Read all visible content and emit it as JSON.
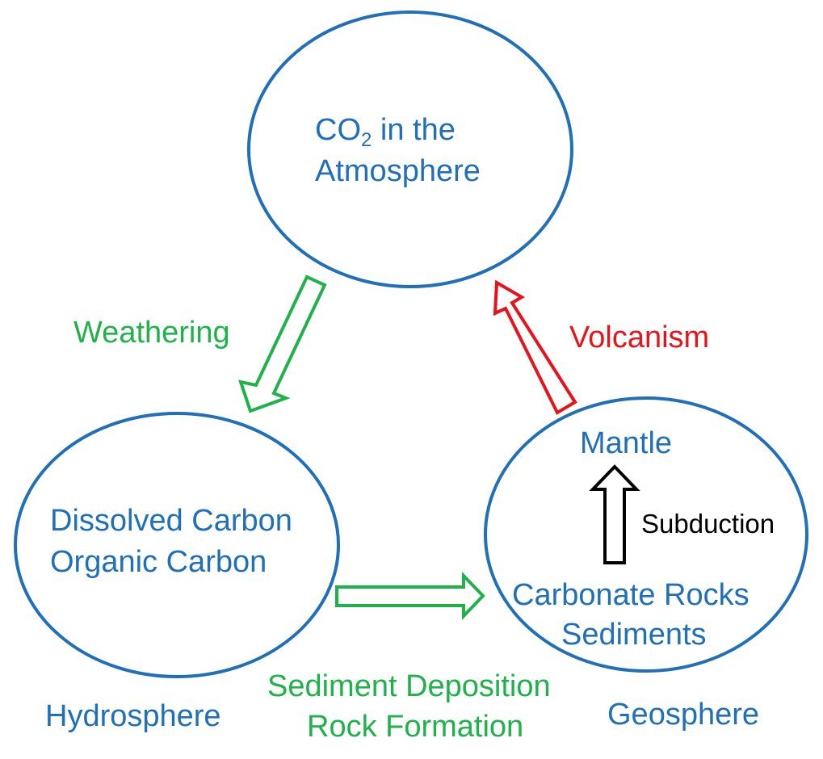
{
  "colors": {
    "blue": "#1F6FB9",
    "green": "#1FB24A",
    "red": "#E8121A",
    "black": "#000000"
  },
  "atmosphere": {
    "line1_prefix": "CO",
    "line1_subscript": "2",
    "line1_suffix": " in the",
    "line2": "Atmosphere"
  },
  "hydrosphere": {
    "line1": "Dissolved Carbon",
    "line2": "Organic Carbon",
    "sphere_label": "Hydrosphere"
  },
  "geosphere": {
    "top_label": "Mantle",
    "line1": "Carbonate Rocks",
    "line2": "Sediments",
    "sphere_label": "Geosphere"
  },
  "processes": {
    "weathering": "Weathering",
    "volcanism": "Volcanism",
    "subduction": "Subduction",
    "deposition_line1": "Sediment Deposition",
    "deposition_line2": "Rock Formation"
  }
}
